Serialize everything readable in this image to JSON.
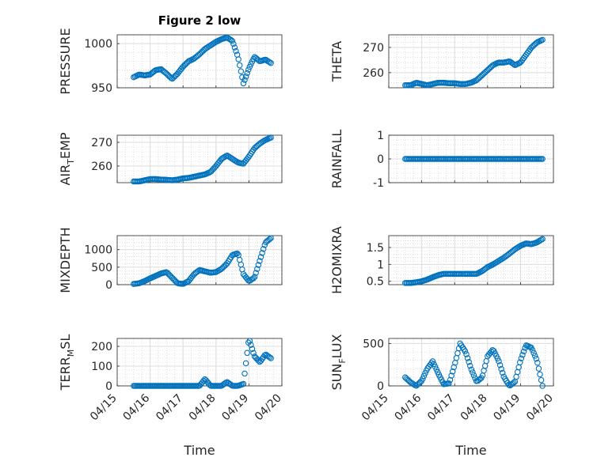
{
  "figure": {
    "title": "Figure 2 low",
    "xlabel": "Time",
    "date_ticks": [
      "04/15",
      "04/16",
      "04/17",
      "04/18",
      "04/19",
      "04/20"
    ],
    "marker_color": "#0072BD",
    "grid": true,
    "minor_grid": true
  },
  "chart_data": [
    {
      "type": "scatter",
      "ylabel": "PRESSURE",
      "xlim": [
        "2024-04-15",
        "2024-04-20"
      ],
      "ylim": [
        950,
        1010
      ],
      "yticks": [
        950,
        1000
      ],
      "x": [
        "04/15 12:00",
        "04/15 16:00",
        "04/15 20:00",
        "04/16 00:00",
        "04/16 04:00",
        "04/16 08:00",
        "04/16 12:00",
        "04/16 16:00",
        "04/16 20:00",
        "04/17 00:00",
        "04/17 04:00",
        "04/17 08:00",
        "04/17 12:00",
        "04/17 16:00",
        "04/17 20:00",
        "04/18 00:00",
        "04/18 04:00",
        "04/18 08:00",
        "04/18 12:00",
        "04/18 16:00",
        "04/18 20:00",
        "04/19 00:00",
        "04/19 04:00",
        "04/19 08:00",
        "04/19 12:00",
        "04/19 16:00"
      ],
      "y": [
        962,
        965,
        964,
        965,
        970,
        971,
        966,
        960,
        966,
        974,
        980,
        983,
        988,
        994,
        998,
        1002,
        1005,
        1007,
        1003,
        985,
        955,
        972,
        985,
        980,
        982,
        978
      ]
    },
    {
      "type": "scatter",
      "ylabel": "THETA",
      "xlim": [
        "2024-04-15",
        "2024-04-20"
      ],
      "ylim": [
        254,
        275
      ],
      "yticks": [
        260,
        270
      ],
      "x": [
        "04/15 12:00",
        "04/15 16:00",
        "04/15 20:00",
        "04/16 00:00",
        "04/16 04:00",
        "04/16 08:00",
        "04/16 12:00",
        "04/16 16:00",
        "04/16 20:00",
        "04/17 00:00",
        "04/17 04:00",
        "04/17 08:00",
        "04/17 12:00",
        "04/17 16:00",
        "04/17 20:00",
        "04/18 00:00",
        "04/18 04:00",
        "04/18 08:00",
        "04/18 12:00",
        "04/18 16:00",
        "04/18 20:00",
        "04/19 00:00",
        "04/19 04:00",
        "04/19 08:00",
        "04/19 12:00",
        "04/19 16:00"
      ],
      "y": [
        255,
        255,
        256,
        255.5,
        255,
        255.5,
        256,
        256,
        255.8,
        255.8,
        255.5,
        255.5,
        256,
        257,
        259,
        261,
        263,
        264,
        264,
        264.5,
        263,
        264,
        267,
        270,
        272,
        273
      ]
    },
    {
      "type": "scatter",
      "ylabel": "AIR_TEMP",
      "xlim": [
        "2024-04-15",
        "2024-04-20"
      ],
      "ylim": [
        253,
        273
      ],
      "yticks": [
        260,
        270
      ],
      "x": [
        "04/15 12:00",
        "04/15 16:00",
        "04/15 20:00",
        "04/16 00:00",
        "04/16 04:00",
        "04/16 08:00",
        "04/16 12:00",
        "04/16 16:00",
        "04/16 20:00",
        "04/17 00:00",
        "04/17 04:00",
        "04/17 08:00",
        "04/17 12:00",
        "04/17 16:00",
        "04/17 20:00",
        "04/18 00:00",
        "04/18 04:00",
        "04/18 08:00",
        "04/18 12:00",
        "04/18 16:00",
        "04/18 20:00",
        "04/19 00:00",
        "04/19 04:00",
        "04/19 08:00",
        "04/19 12:00",
        "04/19 16:00"
      ],
      "y": [
        253.5,
        253.5,
        254,
        254.5,
        254.5,
        254.3,
        254.2,
        254,
        254.3,
        254.8,
        255,
        255.5,
        256,
        256.5,
        257.5,
        260,
        263,
        264.5,
        263,
        261.5,
        261,
        264,
        267.5,
        269.5,
        271,
        272
      ]
    },
    {
      "type": "scatter",
      "ylabel": "RAINFALL",
      "xlim": [
        "2024-04-15",
        "2024-04-20"
      ],
      "ylim": [
        -1,
        1
      ],
      "yticks": [
        -1,
        0,
        1
      ],
      "x": [
        "04/15 12:00",
        "04/15 16:00",
        "04/15 20:00",
        "04/16 00:00",
        "04/16 04:00",
        "04/16 08:00",
        "04/16 12:00",
        "04/16 16:00",
        "04/16 20:00",
        "04/17 00:00",
        "04/17 04:00",
        "04/17 08:00",
        "04/17 12:00",
        "04/17 16:00",
        "04/17 20:00",
        "04/18 00:00",
        "04/18 04:00",
        "04/18 08:00",
        "04/18 12:00",
        "04/18 16:00",
        "04/18 20:00",
        "04/19 00:00",
        "04/19 04:00",
        "04/19 08:00",
        "04/19 12:00",
        "04/19 16:00"
      ],
      "y": [
        0,
        0,
        0,
        0,
        0,
        0,
        0,
        0,
        0,
        0,
        0,
        0,
        0,
        0,
        0,
        0,
        0,
        0,
        0,
        0,
        0,
        0,
        0,
        0,
        0,
        0
      ]
    },
    {
      "type": "scatter",
      "ylabel": "MIXDEPTH",
      "xlim": [
        "2024-04-15",
        "2024-04-20"
      ],
      "ylim": [
        0,
        1400
      ],
      "yticks": [
        0,
        500,
        1000
      ],
      "x": [
        "04/15 12:00",
        "04/15 16:00",
        "04/15 20:00",
        "04/16 00:00",
        "04/16 04:00",
        "04/16 08:00",
        "04/16 12:00",
        "04/16 16:00",
        "04/16 20:00",
        "04/17 00:00",
        "04/17 04:00",
        "04/17 08:00",
        "04/17 12:00",
        "04/17 16:00",
        "04/17 20:00",
        "04/18 00:00",
        "04/18 04:00",
        "04/18 08:00",
        "04/18 12:00",
        "04/18 16:00",
        "04/18 20:00",
        "04/19 00:00",
        "04/19 04:00",
        "04/19 08:00",
        "04/19 12:00",
        "04/19 16:00"
      ],
      "y": [
        20,
        40,
        100,
        180,
        250,
        320,
        360,
        200,
        40,
        20,
        100,
        300,
        420,
        380,
        340,
        360,
        450,
        600,
        850,
        900,
        300,
        100,
        200,
        700,
        1200,
        1330
      ]
    },
    {
      "type": "scatter",
      "ylabel": "H2OMIXRA",
      "xlim": [
        "2024-04-15",
        "2024-04-20"
      ],
      "ylim": [
        0.4,
        1.85
      ],
      "yticks": [
        0.5,
        1,
        1.5
      ],
      "x": [
        "04/15 12:00",
        "04/15 16:00",
        "04/15 20:00",
        "04/16 00:00",
        "04/16 04:00",
        "04/16 08:00",
        "04/16 12:00",
        "04/16 16:00",
        "04/16 20:00",
        "04/17 00:00",
        "04/17 04:00",
        "04/17 08:00",
        "04/17 12:00",
        "04/17 16:00",
        "04/17 20:00",
        "04/18 00:00",
        "04/18 04:00",
        "04/18 08:00",
        "04/18 12:00",
        "04/18 16:00",
        "04/18 20:00",
        "04/19 00:00",
        "04/19 04:00",
        "04/19 08:00",
        "04/19 12:00",
        "04/19 16:00"
      ],
      "y": [
        0.45,
        0.45,
        0.47,
        0.5,
        0.55,
        0.62,
        0.68,
        0.72,
        0.72,
        0.72,
        0.72,
        0.72,
        0.72,
        0.72,
        0.8,
        0.92,
        1.0,
        1.1,
        1.2,
        1.32,
        1.45,
        1.55,
        1.62,
        1.6,
        1.65,
        1.75
      ]
    },
    {
      "type": "scatter",
      "ylabel": "TERR_MSL",
      "xlim": [
        "2024-04-15",
        "2024-04-20"
      ],
      "ylim": [
        0,
        240
      ],
      "yticks": [
        0,
        100,
        200
      ],
      "x": [
        "04/15 12:00",
        "04/15 16:00",
        "04/15 20:00",
        "04/16 00:00",
        "04/16 04:00",
        "04/16 08:00",
        "04/16 12:00",
        "04/16 16:00",
        "04/16 20:00",
        "04/17 00:00",
        "04/17 04:00",
        "04/17 08:00",
        "04/17 12:00",
        "04/17 16:00",
        "04/17 20:00",
        "04/18 00:00",
        "04/18 04:00",
        "04/18 08:00",
        "04/18 12:00",
        "04/18 16:00",
        "04/18 20:00",
        "04/19 00:00",
        "04/19 04:00",
        "04/19 08:00",
        "04/19 12:00",
        "04/19 16:00"
      ],
      "y": [
        0,
        0,
        0,
        0,
        0,
        0,
        0,
        0,
        0,
        0,
        0,
        0,
        0,
        35,
        0,
        0,
        0,
        20,
        0,
        0,
        10,
        240,
        150,
        120,
        160,
        140
      ]
    },
    {
      "type": "scatter",
      "ylabel": "SUN_FLUX",
      "xlim": [
        "2024-04-15",
        "2024-04-20"
      ],
      "ylim": [
        0,
        560
      ],
      "yticks": [
        0,
        500
      ],
      "x": [
        "04/15 12:00",
        "04/15 16:00",
        "04/15 20:00",
        "04/16 00:00",
        "04/16 04:00",
        "04/16 08:00",
        "04/16 12:00",
        "04/16 16:00",
        "04/16 20:00",
        "04/17 00:00",
        "04/17 04:00",
        "04/17 08:00",
        "04/17 12:00",
        "04/17 16:00",
        "04/17 20:00",
        "04/18 00:00",
        "04/18 04:00",
        "04/18 08:00",
        "04/18 12:00",
        "04/18 16:00",
        "04/18 20:00",
        "04/19 00:00",
        "04/19 04:00",
        "04/19 08:00",
        "04/19 12:00",
        "04/19 16:00"
      ],
      "y": [
        100,
        40,
        0,
        60,
        200,
        290,
        150,
        20,
        30,
        250,
        500,
        400,
        200,
        50,
        100,
        350,
        430,
        300,
        100,
        0,
        50,
        300,
        480,
        450,
        300,
        0
      ]
    }
  ]
}
